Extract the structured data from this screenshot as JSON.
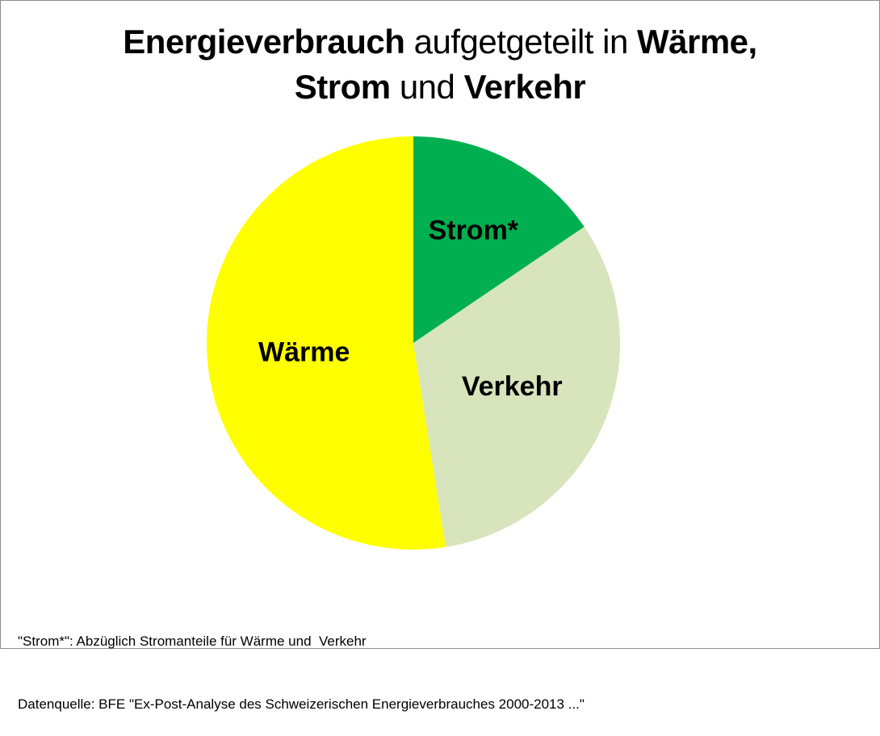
{
  "chart_data": {
    "type": "pie",
    "title_parts": [
      {
        "text": "Energieverbrauch",
        "bold": true
      },
      {
        "text": " aufgetgeteilt in ",
        "bold": false
      },
      {
        "text": "Wärme,",
        "bold": true
      },
      {
        "text": "Strom",
        "bold": true,
        "break_before": true
      },
      {
        "text": " und ",
        "bold": false
      },
      {
        "text": "Verkehr",
        "bold": true
      }
    ],
    "slices": [
      {
        "label": "Strom*",
        "value": 15.5,
        "color": "#00b050"
      },
      {
        "label": "Verkehr",
        "value": 32.0,
        "color": "#d8e4bc"
      },
      {
        "label": "Wärme",
        "value": 52.5,
        "color": "#ffff00"
      }
    ],
    "start_angle_deg": 0,
    "direction": "clockwise"
  },
  "footnotes": [
    "\"Strom*\": Abzüglich Stromanteile für Wärme und  Verkehr",
    "Datenquelle: BFE \"Ex-Post-Analyse des Schweizerischen Energieverbrauches 2000-2013 ...\""
  ]
}
